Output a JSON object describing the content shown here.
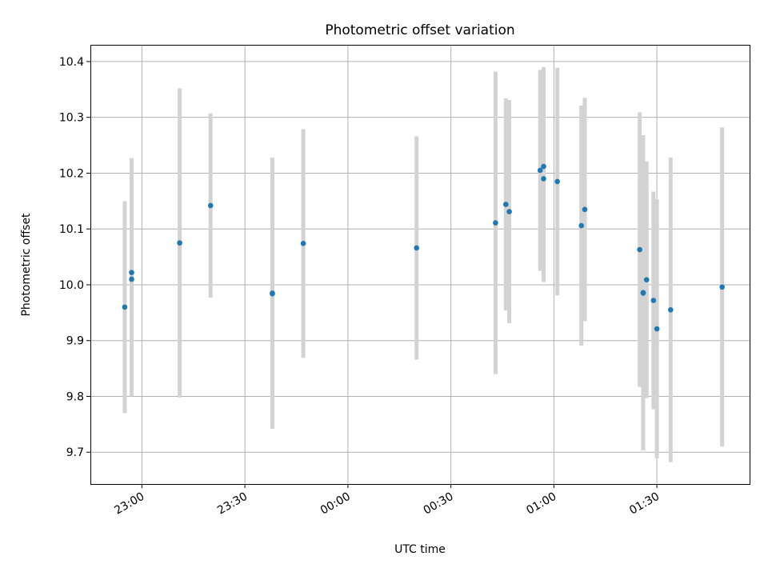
{
  "chart_data": {
    "type": "scatter",
    "title": "Photometric offset variation",
    "xlabel": "UTC time",
    "ylabel": "Photometric offset",
    "x_ticks": [
      "23:00",
      "23:30",
      "00:00",
      "00:30",
      "01:00",
      "01:30"
    ],
    "x_tick_times": [
      "22:60",
      "23:30",
      "24:00",
      "24:30",
      "25:00",
      "25:30"
    ],
    "x_range": [
      "22:45",
      "25:57"
    ],
    "y_ticks": [
      "9.7",
      "9.8",
      "9.9",
      "10.0",
      "10.1",
      "10.2",
      "10.3",
      "10.4"
    ],
    "ylim": [
      9.643,
      10.43
    ],
    "grid": true,
    "marker_color": "#1f77b4",
    "errorbar_color": "#d3d3d3",
    "points": [
      {
        "time": "22:55",
        "y": 9.96,
        "err": 0.19
      },
      {
        "time": "22:57",
        "y": 10.022,
        "err": 0.205
      },
      {
        "time": "22:57",
        "y": 10.01,
        "err": 0.21
      },
      {
        "time": "23:11",
        "y": 10.075,
        "err": 0.277
      },
      {
        "time": "23:20",
        "y": 10.142,
        "err": 0.165
      },
      {
        "time": "23:38",
        "y": 9.985,
        "err": 0.243
      },
      {
        "time": "23:38",
        "y": 9.984,
        "err": 0.238
      },
      {
        "time": "23:47",
        "y": 10.074,
        "err": 0.205
      },
      {
        "time": "24:20",
        "y": 10.066,
        "err": 0.2
      },
      {
        "time": "24:43",
        "y": 10.111,
        "err": 0.271
      },
      {
        "time": "24:46",
        "y": 10.144,
        "err": 0.19
      },
      {
        "time": "24:47",
        "y": 10.131,
        "err": 0.2
      },
      {
        "time": "24:56",
        "y": 10.205,
        "err": 0.18
      },
      {
        "time": "24:57",
        "y": 10.19,
        "err": 0.185
      },
      {
        "time": "24:57",
        "y": 10.212,
        "err": 0.178
      },
      {
        "time": "25:01",
        "y": 10.185,
        "err": 0.204
      },
      {
        "time": "25:08",
        "y": 10.106,
        "err": 0.215
      },
      {
        "time": "25:09",
        "y": 10.135,
        "err": 0.2
      },
      {
        "time": "25:25",
        "y": 10.063,
        "err": 0.246
      },
      {
        "time": "25:26",
        "y": 9.986,
        "err": 0.282
      },
      {
        "time": "25:26",
        "y": 9.985,
        "err": 0.282
      },
      {
        "time": "25:27",
        "y": 10.009,
        "err": 0.212
      },
      {
        "time": "25:29",
        "y": 9.972,
        "err": 0.195
      },
      {
        "time": "25:30",
        "y": 9.921,
        "err": 0.232
      },
      {
        "time": "25:34",
        "y": 9.955,
        "err": 0.273
      },
      {
        "time": "25:49",
        "y": 9.996,
        "err": 0.286
      }
    ]
  }
}
